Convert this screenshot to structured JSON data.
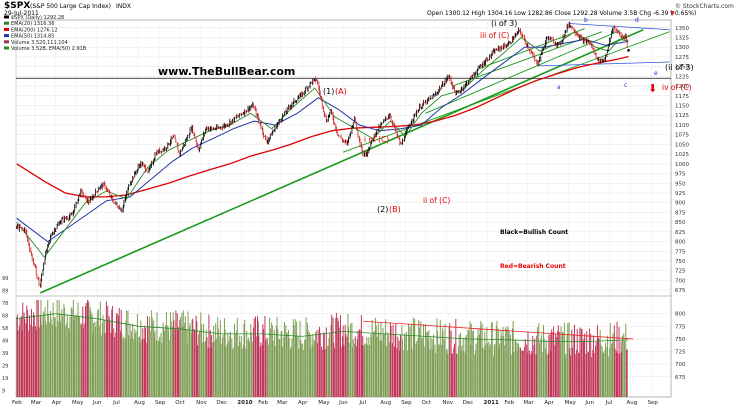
{
  "header": {
    "symbol": "$SPX",
    "description": "(S&P 500 Large Cap Index)",
    "exchange": "INDX",
    "date": "29-Jul-2011",
    "quote": "Open 1300.12  High 1304.16  Low 1282.86  Close 1292.28  Volume 3.5B  Chg -6.39 (-0.65%)",
    "quote_arrow": "▼",
    "brand": "© StockCharts.com"
  },
  "legend": [
    {
      "label": "$SPX (Daily) 1292.28",
      "color": "#000000"
    },
    {
      "label": "EMA(20) 1316.36",
      "color": "#2a8a2a"
    },
    {
      "label": "EMA(200) 1276.12",
      "color": "#e00000"
    },
    {
      "label": "EMA(50) 1314.85",
      "color": "#2233aa"
    },
    {
      "label": "Volume 3,520,111,104",
      "color": "#a0304f"
    },
    {
      "label": "Volume 3.52B, EMA(50) 2.91B",
      "color": "#2a8a2a"
    }
  ],
  "watermark": "www.TheBullBear.com",
  "annotations": {
    "wave1_black": "(1)",
    "wave1_red": "(A)",
    "wave2_black": "(2)",
    "wave2_red": "(B)",
    "i_of_c": "i of (C)",
    "ii_of_c": "ii of (C)",
    "i_of_3": "(i of 3)",
    "iii_of_c": "iii of (C)",
    "ii_of_3": "(ii of 3)",
    "iv_of_c": "iv of (C)",
    "a": "a",
    "b": "b",
    "c": "c",
    "d": "d",
    "e": "e",
    "bullish": "Black=Bullish Count",
    "bearish": "Red=Bearish Count",
    "down_arrow": "⬇"
  },
  "colors": {
    "up_bar": "#7f9f57",
    "down_bar": "#c0395a",
    "ema20": "#2a8a2a",
    "ema50": "#2233aa",
    "ema200": "#e00000",
    "trend_green": "#1a9a1a",
    "trend_blue": "#3355dd",
    "trend_red": "#ee2222",
    "bullish_text": "#000000",
    "bearish_text": "#ee0000"
  },
  "chart_data": {
    "type": "line",
    "title": "$SPX (S&P 500 Large Cap Index) INDX",
    "price_axis": {
      "ylim": [
        660,
        1370
      ],
      "ticks": [
        1350,
        1325,
        1300,
        1275,
        1250,
        1225,
        1200,
        1175,
        1150,
        1125,
        1100,
        1075,
        1050,
        1025,
        1000,
        975,
        950,
        925,
        900,
        875,
        850,
        825,
        800,
        775,
        750,
        725,
        700,
        675
      ]
    },
    "volume_axis": {
      "ylim": [
        635,
        835
      ],
      "ticks": [
        800,
        775,
        750,
        725,
        700,
        675
      ],
      "left_ticks": [
        "99",
        "89",
        "78",
        "68",
        "58",
        "49",
        "39",
        "29",
        "19",
        "9"
      ]
    },
    "x_axis": {
      "time_range": [
        "2009-02-01",
        "2011-09-30"
      ],
      "ticks": [
        {
          "date": "2009-02-01",
          "label": "Feb"
        },
        {
          "date": "2009-03-01",
          "label": "Mar"
        },
        {
          "date": "2009-04-01",
          "label": "Apr"
        },
        {
          "date": "2009-05-01",
          "label": "May"
        },
        {
          "date": "2009-06-01",
          "label": "Jun"
        },
        {
          "date": "2009-07-01",
          "label": "Jul"
        },
        {
          "date": "2009-08-01",
          "label": "Aug"
        },
        {
          "date": "2009-09-01",
          "label": "Sep"
        },
        {
          "date": "2009-10-01",
          "label": "Oct"
        },
        {
          "date": "2009-11-01",
          "label": "Nov"
        },
        {
          "date": "2009-12-01",
          "label": "Dec"
        },
        {
          "date": "2010-01-01",
          "label": "2010"
        },
        {
          "date": "2010-02-01",
          "label": "Feb"
        },
        {
          "date": "2010-03-01",
          "label": "Mar"
        },
        {
          "date": "2010-04-01",
          "label": "Apr"
        },
        {
          "date": "2010-05-01",
          "label": "May"
        },
        {
          "date": "2010-06-01",
          "label": "Jun"
        },
        {
          "date": "2010-07-01",
          "label": "Jul"
        },
        {
          "date": "2010-08-01",
          "label": "Aug"
        },
        {
          "date": "2010-09-01",
          "label": "Sep"
        },
        {
          "date": "2010-10-01",
          "label": "Oct"
        },
        {
          "date": "2010-11-01",
          "label": "Nov"
        },
        {
          "date": "2010-12-01",
          "label": "Dec"
        },
        {
          "date": "2011-01-01",
          "label": "2011"
        },
        {
          "date": "2011-02-01",
          "label": "Feb"
        },
        {
          "date": "2011-03-01",
          "label": "Mar"
        },
        {
          "date": "2011-04-01",
          "label": "Apr"
        },
        {
          "date": "2011-05-01",
          "label": "May"
        },
        {
          "date": "2011-06-01",
          "label": "Jun"
        },
        {
          "date": "2011-07-01",
          "label": "Jul"
        },
        {
          "date": "2011-08-01",
          "label": "Aug"
        },
        {
          "date": "2011-09-01",
          "label": "Sep"
        }
      ]
    },
    "price": [
      [
        "2009-02-02",
        838
      ],
      [
        "2009-02-15",
        830
      ],
      [
        "2009-02-25",
        760
      ],
      [
        "2009-03-09",
        683
      ],
      [
        "2009-03-16",
        760
      ],
      [
        "2009-03-26",
        820
      ],
      [
        "2009-04-10",
        856
      ],
      [
        "2009-04-25",
        866
      ],
      [
        "2009-05-08",
        929
      ],
      [
        "2009-05-20",
        900
      ],
      [
        "2009-06-05",
        940
      ],
      [
        "2009-06-12",
        946
      ],
      [
        "2009-06-25",
        905
      ],
      [
        "2009-07-08",
        880
      ],
      [
        "2009-07-20",
        950
      ],
      [
        "2009-08-05",
        1002
      ],
      [
        "2009-08-17",
        980
      ],
      [
        "2009-08-28",
        1028
      ],
      [
        "2009-09-10",
        1040
      ],
      [
        "2009-09-23",
        1070
      ],
      [
        "2009-10-02",
        1025
      ],
      [
        "2009-10-20",
        1095
      ],
      [
        "2009-10-30",
        1036
      ],
      [
        "2009-11-10",
        1093
      ],
      [
        "2009-11-20",
        1090
      ],
      [
        "2009-11-27",
        1091
      ],
      [
        "2009-12-10",
        1100
      ],
      [
        "2010-01-04",
        1132
      ],
      [
        "2010-01-19",
        1150
      ],
      [
        "2010-02-08",
        1056
      ],
      [
        "2010-02-25",
        1105
      ],
      [
        "2010-03-15",
        1150
      ],
      [
        "2010-04-01",
        1178
      ],
      [
        "2010-04-15",
        1210
      ],
      [
        "2010-04-23",
        1217
      ],
      [
        "2010-05-07",
        1110
      ],
      [
        "2010-05-14",
        1135
      ],
      [
        "2010-05-25",
        1073
      ],
      [
        "2010-06-07",
        1050
      ],
      [
        "2010-06-18",
        1117
      ],
      [
        "2010-07-01",
        1022
      ],
      [
        "2010-07-06",
        1028
      ],
      [
        "2010-07-20",
        1082
      ],
      [
        "2010-08-09",
        1127
      ],
      [
        "2010-08-26",
        1047
      ],
      [
        "2010-09-10",
        1110
      ],
      [
        "2010-09-24",
        1148
      ],
      [
        "2010-10-15",
        1176
      ],
      [
        "2010-11-05",
        1225
      ],
      [
        "2010-11-16",
        1178
      ],
      [
        "2010-12-01",
        1206
      ],
      [
        "2010-12-20",
        1247
      ],
      [
        "2011-01-14",
        1293
      ],
      [
        "2011-02-01",
        1307
      ],
      [
        "2011-02-18",
        1343
      ],
      [
        "2011-03-01",
        1306
      ],
      [
        "2011-03-16",
        1256
      ],
      [
        "2011-03-31",
        1326
      ],
      [
        "2011-04-18",
        1305
      ],
      [
        "2011-05-02",
        1361
      ],
      [
        "2011-05-23",
        1316
      ],
      [
        "2011-06-01",
        1315
      ],
      [
        "2011-06-15",
        1265
      ],
      [
        "2011-06-24",
        1268
      ],
      [
        "2011-07-07",
        1353
      ],
      [
        "2011-07-19",
        1326
      ],
      [
        "2011-07-25",
        1331
      ],
      [
        "2011-07-29",
        1292
      ]
    ],
    "ema20": [
      [
        "2009-02-02",
        850
      ],
      [
        "2009-03-15",
        760
      ],
      [
        "2009-04-10",
        820
      ],
      [
        "2009-05-15",
        900
      ],
      [
        "2009-06-15",
        930
      ],
      [
        "2009-07-15",
        910
      ],
      [
        "2009-08-15",
        990
      ],
      [
        "2009-09-15",
        1035
      ],
      [
        "2009-10-15",
        1060
      ],
      [
        "2009-11-15",
        1085
      ],
      [
        "2009-12-15",
        1100
      ],
      [
        "2010-01-15",
        1130
      ],
      [
        "2010-02-15",
        1090
      ],
      [
        "2010-03-15",
        1140
      ],
      [
        "2010-04-20",
        1195
      ],
      [
        "2010-05-20",
        1120
      ],
      [
        "2010-06-20",
        1090
      ],
      [
        "2010-07-15",
        1065
      ],
      [
        "2010-08-10",
        1110
      ],
      [
        "2010-09-01",
        1070
      ],
      [
        "2010-09-25",
        1130
      ],
      [
        "2010-10-25",
        1175
      ],
      [
        "2010-11-25",
        1190
      ],
      [
        "2010-12-25",
        1240
      ],
      [
        "2011-01-25",
        1285
      ],
      [
        "2011-02-20",
        1325
      ],
      [
        "2011-03-20",
        1290
      ],
      [
        "2011-04-15",
        1310
      ],
      [
        "2011-05-10",
        1340
      ],
      [
        "2011-06-10",
        1300
      ],
      [
        "2011-06-30",
        1290
      ],
      [
        "2011-07-15",
        1320
      ],
      [
        "2011-07-29",
        1316
      ]
    ],
    "ema50": [
      [
        "2009-02-02",
        860
      ],
      [
        "2009-03-20",
        800
      ],
      [
        "2009-05-01",
        850
      ],
      [
        "2009-06-15",
        905
      ],
      [
        "2009-07-20",
        915
      ],
      [
        "2009-08-20",
        960
      ],
      [
        "2009-09-20",
        1005
      ],
      [
        "2009-10-20",
        1040
      ],
      [
        "2009-11-20",
        1065
      ],
      [
        "2009-12-20",
        1090
      ],
      [
        "2010-01-20",
        1110
      ],
      [
        "2010-02-20",
        1100
      ],
      [
        "2010-03-25",
        1130
      ],
      [
        "2010-04-25",
        1170
      ],
      [
        "2010-05-25",
        1140
      ],
      [
        "2010-06-25",
        1100
      ],
      [
        "2010-07-25",
        1085
      ],
      [
        "2010-08-25",
        1090
      ],
      [
        "2010-09-25",
        1100
      ],
      [
        "2010-10-25",
        1145
      ],
      [
        "2010-11-25",
        1180
      ],
      [
        "2010-12-25",
        1220
      ],
      [
        "2011-01-25",
        1260
      ],
      [
        "2011-02-25",
        1300
      ],
      [
        "2011-03-25",
        1300
      ],
      [
        "2011-04-25",
        1310
      ],
      [
        "2011-05-25",
        1320
      ],
      [
        "2011-06-25",
        1305
      ],
      [
        "2011-07-29",
        1315
      ]
    ],
    "ema200": [
      [
        "2009-02-02",
        1000
      ],
      [
        "2009-03-15",
        955
      ],
      [
        "2009-04-15",
        925
      ],
      [
        "2009-05-15",
        915
      ],
      [
        "2009-06-15",
        915
      ],
      [
        "2009-07-15",
        920
      ],
      [
        "2009-08-15",
        935
      ],
      [
        "2009-09-15",
        950
      ],
      [
        "2009-10-15",
        968
      ],
      [
        "2009-11-15",
        985
      ],
      [
        "2009-12-15",
        1000
      ],
      [
        "2010-01-15",
        1020
      ],
      [
        "2010-02-15",
        1035
      ],
      [
        "2010-03-15",
        1050
      ],
      [
        "2010-04-15",
        1070
      ],
      [
        "2010-05-15",
        1085
      ],
      [
        "2010-06-15",
        1092
      ],
      [
        "2010-07-15",
        1094
      ],
      [
        "2010-08-15",
        1096
      ],
      [
        "2010-09-15",
        1100
      ],
      [
        "2010-10-15",
        1110
      ],
      [
        "2010-11-15",
        1125
      ],
      [
        "2010-12-15",
        1145
      ],
      [
        "2011-01-15",
        1170
      ],
      [
        "2011-02-15",
        1195
      ],
      [
        "2011-03-15",
        1215
      ],
      [
        "2011-04-15",
        1232
      ],
      [
        "2011-05-15",
        1248
      ],
      [
        "2011-06-15",
        1260
      ],
      [
        "2011-07-15",
        1270
      ],
      [
        "2011-07-29",
        1276
      ]
    ],
    "horizontal_line": 1220,
    "trendlines": [
      {
        "from": [
          "2009-03-09",
          668
        ],
        "to": [
          "2011-08-20",
          1345
        ],
        "color": "trend_green"
      },
      {
        "from": [
          "2010-06-01",
          1030
        ],
        "to": [
          "2011-09-28",
          1340
        ],
        "color": "trend_green"
      },
      {
        "from": [
          "2010-10-01",
          1130
        ],
        "to": [
          "2011-07-15",
          1342
        ],
        "color": "trend_green"
      },
      {
        "from": [
          "2010-11-10",
          1200
        ],
        "to": [
          "2011-06-20",
          1340
        ],
        "color": "trend_green"
      },
      {
        "from": [
          "2010-12-20",
          1245
        ],
        "to": [
          "2011-05-25",
          1348
        ],
        "color": "trend_green"
      },
      {
        "from": [
          "2011-05-02",
          1361
        ],
        "to": [
          "2011-09-28",
          1345
        ],
        "color": "trend_blue"
      },
      {
        "from": [
          "2011-03-16",
          1252
        ],
        "to": [
          "2011-09-28",
          1262
        ],
        "color": "trend_blue"
      },
      {
        "from": [
          "2010-07-01",
          785
        ],
        "to": [
          "2011-08-05",
          750
        ],
        "color": "trend_red"
      }
    ],
    "volume_ema": [
      [
        "2009-02-01",
        790
      ],
      [
        "2009-04-01",
        800
      ],
      [
        "2009-06-01",
        790
      ],
      [
        "2009-08-01",
        775
      ],
      [
        "2009-10-01",
        770
      ],
      [
        "2009-12-01",
        760
      ],
      [
        "2010-02-01",
        760
      ],
      [
        "2010-04-01",
        755
      ],
      [
        "2010-06-01",
        765
      ],
      [
        "2010-08-01",
        760
      ],
      [
        "2010-10-01",
        755
      ],
      [
        "2010-12-01",
        750
      ],
      [
        "2011-02-01",
        748
      ],
      [
        "2011-04-01",
        745
      ],
      [
        "2011-06-01",
        745
      ],
      [
        "2011-07-29",
        748
      ]
    ]
  }
}
